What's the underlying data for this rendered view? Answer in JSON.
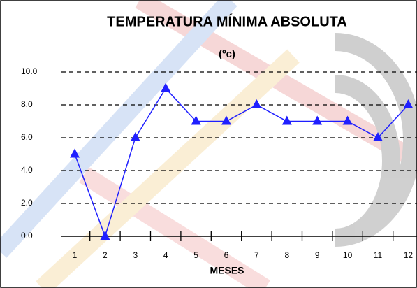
{
  "chart_data": {
    "type": "line",
    "title": "TEMPERATURA MÍNIMA ABSOLUTA",
    "subtitle": "(ºc)",
    "x_label": "MESES",
    "categories": [
      "1",
      "2",
      "3",
      "4",
      "5",
      "6",
      "7",
      "8",
      "9",
      "10",
      "11",
      "12"
    ],
    "values": [
      5,
      0,
      6,
      9,
      7,
      7,
      8,
      7,
      7,
      7,
      6,
      8
    ],
    "color": "#1f1fff",
    "ylim": [
      0,
      10
    ],
    "yticks": [
      {
        "value": 0,
        "label": "0.0"
      },
      {
        "value": 2,
        "label": "2.0"
      },
      {
        "value": 4,
        "label": "4.0"
      },
      {
        "value": 6,
        "label": "6.0"
      },
      {
        "value": 8,
        "label": "8.0"
      },
      {
        "value": 10,
        "label": "10.0"
      }
    ],
    "grid": true
  }
}
